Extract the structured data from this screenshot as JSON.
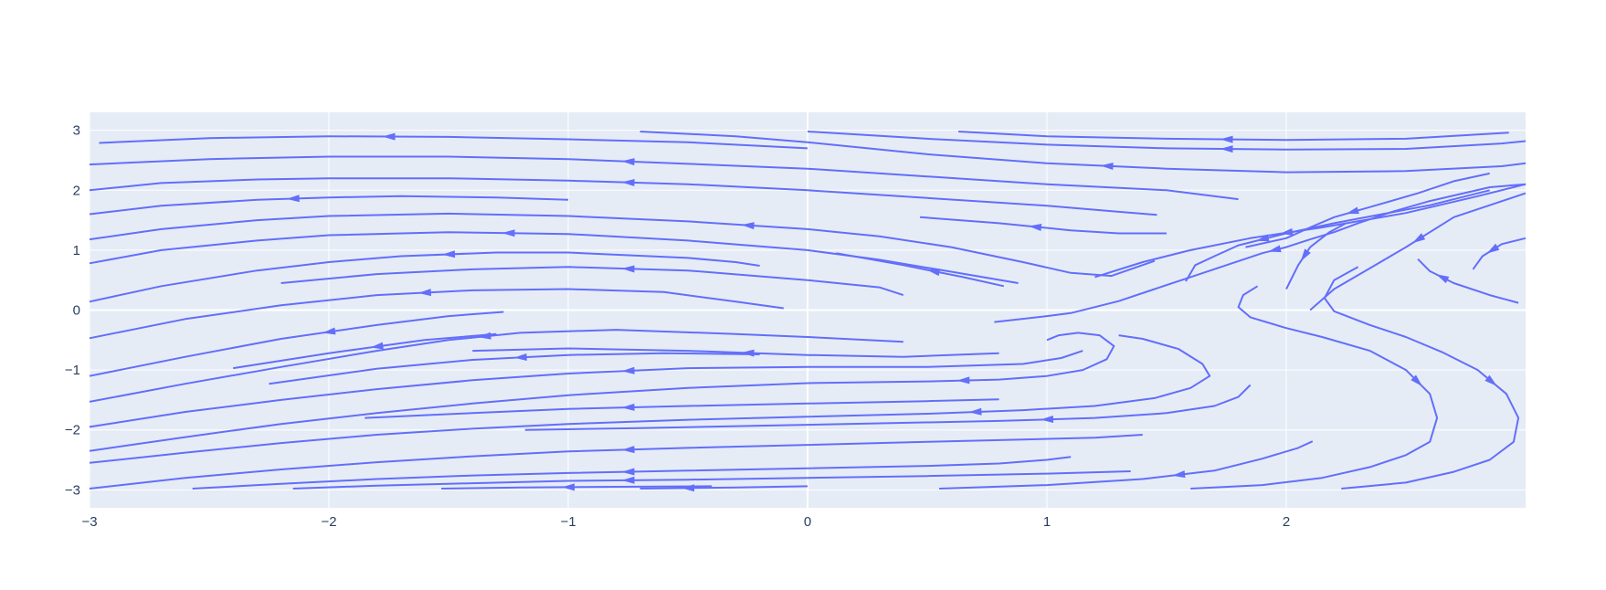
{
  "chart_data": {
    "type": "streamline",
    "title": "",
    "xlabel": "",
    "ylabel": "",
    "xlim": [
      -3,
      3
    ],
    "ylim": [
      -3.3,
      3.3
    ],
    "x_ticks": [
      -3,
      -2,
      -1,
      0,
      1,
      2
    ],
    "x_tick_labels": [
      "−3",
      "−2",
      "−1",
      "0",
      "1",
      "2"
    ],
    "y_ticks": [
      3,
      2,
      1,
      0,
      -1,
      -2,
      -3
    ],
    "y_tick_labels": [
      "3",
      "2",
      "1",
      "0",
      "−1",
      "−2",
      "−3"
    ],
    "grid": true,
    "colors": {
      "line": "#636efa",
      "plot_bg": "#e5ecf6",
      "grid": "#ffffff",
      "text": "#2a3f5f"
    },
    "streamlines": [
      [
        [
          -2.96,
          2.79
        ],
        [
          -2.5,
          2.87
        ],
        [
          -2,
          2.9
        ],
        [
          -1.5,
          2.89
        ],
        [
          -1,
          2.85
        ],
        [
          -0.5,
          2.8
        ],
        [
          0,
          2.7
        ]
      ],
      [
        [
          -3,
          2.43
        ],
        [
          -2.5,
          2.52
        ],
        [
          -2,
          2.56
        ],
        [
          -1.5,
          2.56
        ],
        [
          -1,
          2.52
        ],
        [
          -0.5,
          2.44
        ],
        [
          0,
          2.36
        ],
        [
          0.5,
          2.23
        ],
        [
          1,
          2.1
        ],
        [
          1.5,
          2.0
        ],
        [
          1.8,
          1.85
        ]
      ],
      [
        [
          -3,
          2.0
        ],
        [
          -2.7,
          2.12
        ],
        [
          -2.3,
          2.18
        ],
        [
          -2,
          2.2
        ],
        [
          -1.5,
          2.2
        ],
        [
          -1,
          2.16
        ],
        [
          -0.5,
          2.1
        ],
        [
          0,
          2.0
        ],
        [
          0.5,
          1.87
        ],
        [
          1,
          1.74
        ],
        [
          1.3,
          1.64
        ],
        [
          1.46,
          1.59
        ]
      ],
      [
        [
          -3,
          1.6
        ],
        [
          -2.7,
          1.74
        ],
        [
          -2.3,
          1.84
        ],
        [
          -2,
          1.88
        ],
        [
          -1.7,
          1.9
        ],
        [
          -1.3,
          1.88
        ],
        [
          -1.0,
          1.84
        ]
      ],
      [
        [
          -3,
          1.18
        ],
        [
          -2.7,
          1.35
        ],
        [
          -2.3,
          1.5
        ],
        [
          -2,
          1.57
        ],
        [
          -1.5,
          1.61
        ],
        [
          -1,
          1.57
        ],
        [
          -0.5,
          1.48
        ],
        [
          0,
          1.35
        ],
        [
          0.3,
          1.23
        ],
        [
          0.6,
          1.05
        ],
        [
          0.9,
          0.8
        ],
        [
          1.1,
          0.62
        ],
        [
          1.27,
          0.57
        ],
        [
          1.45,
          0.82
        ]
      ],
      [
        [
          -3,
          0.78
        ],
        [
          -2.7,
          1.0
        ],
        [
          -2.3,
          1.16
        ],
        [
          -2,
          1.25
        ],
        [
          -1.5,
          1.3
        ],
        [
          -1,
          1.27
        ],
        [
          -0.5,
          1.16
        ],
        [
          0,
          1.0
        ],
        [
          0.3,
          0.84
        ],
        [
          0.6,
          0.64
        ],
        [
          0.88,
          0.45
        ]
      ],
      [
        [
          -3,
          0.14
        ],
        [
          -2.7,
          0.4
        ],
        [
          -2.3,
          0.66
        ],
        [
          -2,
          0.8
        ],
        [
          -1.7,
          0.9
        ],
        [
          -1.3,
          0.96
        ],
        [
          -1,
          0.96
        ],
        [
          -0.5,
          0.87
        ],
        [
          -0.3,
          0.8
        ],
        [
          -0.2,
          0.74
        ]
      ],
      [
        [
          -2.2,
          0.45
        ],
        [
          -1.8,
          0.6
        ],
        [
          -1.4,
          0.68
        ],
        [
          -1.0,
          0.72
        ],
        [
          -0.5,
          0.66
        ],
        [
          0,
          0.5
        ],
        [
          0.3,
          0.38
        ],
        [
          0.4,
          0.25
        ]
      ],
      [
        [
          -3,
          -0.47
        ],
        [
          -2.6,
          -0.15
        ],
        [
          -2.2,
          0.08
        ],
        [
          -1.8,
          0.25
        ],
        [
          -1.4,
          0.33
        ],
        [
          -1,
          0.35
        ],
        [
          -0.6,
          0.3
        ],
        [
          -0.3,
          0.14
        ],
        [
          -0.1,
          0.03
        ]
      ],
      [
        [
          -3,
          -1.1
        ],
        [
          -2.6,
          -0.78
        ],
        [
          -2.2,
          -0.48
        ],
        [
          -1.8,
          -0.25
        ],
        [
          -1.5,
          -0.1
        ],
        [
          -1.27,
          -0.03
        ]
      ],
      [
        [
          -2.4,
          -0.97
        ],
        [
          -2,
          -0.72
        ],
        [
          -1.6,
          -0.5
        ],
        [
          -1.3,
          -0.4
        ]
      ],
      [
        [
          -3,
          -1.53
        ],
        [
          -2.6,
          -1.23
        ],
        [
          -2.2,
          -0.95
        ],
        [
          -1.8,
          -0.68
        ],
        [
          -1.5,
          -0.5
        ],
        [
          -1.2,
          -0.38
        ],
        [
          -0.8,
          -0.33
        ],
        [
          -0.3,
          -0.4
        ],
        [
          0,
          -0.45
        ],
        [
          0.4,
          -0.53
        ]
      ],
      [
        [
          -2.25,
          -1.23
        ],
        [
          -1.8,
          -0.98
        ],
        [
          -1.4,
          -0.83
        ],
        [
          -1.0,
          -0.75
        ],
        [
          -0.6,
          -0.72
        ],
        [
          -0.2,
          -0.74
        ]
      ],
      [
        [
          -1.4,
          -0.68
        ],
        [
          -1,
          -0.64
        ],
        [
          -0.5,
          -0.68
        ],
        [
          0,
          -0.75
        ],
        [
          0.4,
          -0.78
        ],
        [
          0.8,
          -0.72
        ]
      ],
      [
        [
          -3,
          -1.95
        ],
        [
          -2.6,
          -1.7
        ],
        [
          -2.2,
          -1.5
        ],
        [
          -1.8,
          -1.32
        ],
        [
          -1.4,
          -1.17
        ],
        [
          -1,
          -1.06
        ],
        [
          -0.5,
          -0.97
        ],
        [
          0,
          -0.95
        ],
        [
          0.5,
          -0.95
        ],
        [
          0.9,
          -0.9
        ],
        [
          1.06,
          -0.8
        ],
        [
          1.15,
          -0.68
        ]
      ],
      [
        [
          -3,
          -2.35
        ],
        [
          -2.6,
          -2.12
        ],
        [
          -2.2,
          -1.9
        ],
        [
          -1.8,
          -1.72
        ],
        [
          -1.4,
          -1.56
        ],
        [
          -1,
          -1.42
        ],
        [
          -0.5,
          -1.3
        ],
        [
          0,
          -1.22
        ],
        [
          0.5,
          -1.19
        ],
        [
          0.8,
          -1.16
        ],
        [
          1.0,
          -1.1
        ],
        [
          1.15,
          -1.0
        ],
        [
          1.25,
          -0.82
        ],
        [
          1.28,
          -0.6
        ],
        [
          1.22,
          -0.42
        ],
        [
          1.13,
          -0.38
        ],
        [
          1.05,
          -0.42
        ],
        [
          1.0,
          -0.5
        ]
      ],
      [
        [
          -1.85,
          -1.8
        ],
        [
          -1.4,
          -1.72
        ],
        [
          -1,
          -1.65
        ],
        [
          -0.5,
          -1.6
        ],
        [
          0,
          -1.56
        ],
        [
          0.5,
          -1.52
        ],
        [
          0.8,
          -1.49
        ]
      ],
      [
        [
          -3,
          -2.55
        ],
        [
          -2.6,
          -2.38
        ],
        [
          -2.2,
          -2.22
        ],
        [
          -1.8,
          -2.08
        ],
        [
          -1.4,
          -1.98
        ],
        [
          -1,
          -1.9
        ],
        [
          -0.5,
          -1.83
        ],
        [
          0,
          -1.78
        ],
        [
          0.5,
          -1.73
        ],
        [
          0.9,
          -1.67
        ],
        [
          1.2,
          -1.6
        ],
        [
          1.45,
          -1.47
        ],
        [
          1.6,
          -1.3
        ],
        [
          1.68,
          -1.1
        ],
        [
          1.65,
          -0.9
        ],
        [
          1.55,
          -0.65
        ],
        [
          1.4,
          -0.48
        ],
        [
          1.3,
          -0.42
        ]
      ],
      [
        [
          -1.18,
          -2.0
        ],
        [
          -0.7,
          -1.97
        ],
        [
          -0.2,
          -1.93
        ],
        [
          0.3,
          -1.89
        ],
        [
          0.8,
          -1.85
        ],
        [
          1.2,
          -1.8
        ],
        [
          1.5,
          -1.72
        ],
        [
          1.7,
          -1.6
        ],
        [
          1.8,
          -1.45
        ],
        [
          1.85,
          -1.25
        ]
      ],
      [
        [
          -3,
          -2.98
        ],
        [
          -2.6,
          -2.8
        ],
        [
          -2.2,
          -2.66
        ],
        [
          -1.8,
          -2.54
        ],
        [
          -1.4,
          -2.44
        ],
        [
          -1,
          -2.36
        ],
        [
          -0.5,
          -2.3
        ],
        [
          0,
          -2.25
        ],
        [
          0.5,
          -2.2
        ],
        [
          0.9,
          -2.16
        ],
        [
          1.2,
          -2.13
        ],
        [
          1.4,
          -2.08
        ]
      ],
      [
        [
          -2.57,
          -2.98
        ],
        [
          -2.2,
          -2.9
        ],
        [
          -1.8,
          -2.82
        ],
        [
          -1.4,
          -2.76
        ],
        [
          -1,
          -2.72
        ],
        [
          -0.5,
          -2.68
        ],
        [
          0,
          -2.64
        ],
        [
          0.5,
          -2.6
        ],
        [
          0.8,
          -2.56
        ],
        [
          1.0,
          -2.5
        ],
        [
          1.1,
          -2.45
        ]
      ],
      [
        [
          -2.15,
          -2.98
        ],
        [
          -1.8,
          -2.93
        ],
        [
          -1.4,
          -2.89
        ],
        [
          -1,
          -2.85
        ],
        [
          -0.5,
          -2.83
        ],
        [
          0,
          -2.8
        ],
        [
          0.5,
          -2.77
        ],
        [
          1.0,
          -2.73
        ],
        [
          1.35,
          -2.69
        ]
      ],
      [
        [
          -1.53,
          -2.98
        ],
        [
          -1.2,
          -2.96
        ],
        [
          -0.8,
          -2.95
        ],
        [
          -0.4,
          -2.94
        ]
      ],
      [
        [
          -0.7,
          -2.98
        ],
        [
          -0.3,
          -2.96
        ],
        [
          0,
          -2.94
        ]
      ],
      [
        [
          0.55,
          -2.98
        ],
        [
          1.0,
          -2.92
        ],
        [
          1.4,
          -2.82
        ],
        [
          1.7,
          -2.68
        ],
        [
          1.9,
          -2.48
        ],
        [
          2.05,
          -2.3
        ],
        [
          2.11,
          -2.19
        ]
      ],
      [
        [
          1.6,
          -2.98
        ],
        [
          1.9,
          -2.92
        ],
        [
          2.15,
          -2.8
        ],
        [
          2.35,
          -2.62
        ],
        [
          2.5,
          -2.42
        ],
        [
          2.6,
          -2.2
        ],
        [
          2.63,
          -1.8
        ],
        [
          2.6,
          -1.4
        ],
        [
          2.5,
          -1.0
        ],
        [
          2.35,
          -0.68
        ],
        [
          2.15,
          -0.45
        ],
        [
          2.0,
          -0.3
        ],
        [
          1.85,
          -0.12
        ],
        [
          1.8,
          0.05
        ],
        [
          1.82,
          0.25
        ],
        [
          1.88,
          0.4
        ]
      ],
      [
        [
          2.23,
          -2.98
        ],
        [
          2.5,
          -2.88
        ],
        [
          2.7,
          -2.7
        ],
        [
          2.85,
          -2.5
        ],
        [
          2.95,
          -2.2
        ],
        [
          2.97,
          -1.8
        ],
        [
          2.92,
          -1.4
        ],
        [
          2.8,
          -1.0
        ],
        [
          2.65,
          -0.7
        ],
        [
          2.5,
          -0.45
        ],
        [
          2.35,
          -0.25
        ],
        [
          2.2,
          -0.02
        ],
        [
          2.16,
          0.2
        ],
        [
          2.2,
          0.5
        ],
        [
          2.3,
          0.72
        ]
      ],
      [
        [
          2.55,
          0.85
        ],
        [
          2.6,
          0.65
        ],
        [
          2.7,
          0.45
        ],
        [
          2.85,
          0.25
        ],
        [
          2.97,
          0.12
        ]
      ],
      [
        [
          2.78,
          0.68
        ],
        [
          2.82,
          0.9
        ],
        [
          2.9,
          1.1
        ],
        [
          3.0,
          1.2
        ]
      ],
      [
        [
          0.78,
          -0.2
        ],
        [
          1.0,
          -0.1
        ],
        [
          1.1,
          -0.05
        ],
        [
          1.3,
          0.15
        ],
        [
          1.45,
          0.35
        ],
        [
          1.6,
          0.55
        ],
        [
          1.75,
          0.75
        ],
        [
          1.9,
          0.95
        ],
        [
          2.0,
          1.05
        ],
        [
          2.1,
          1.18
        ],
        [
          2.2,
          1.3
        ],
        [
          2.3,
          1.45
        ],
        [
          2.45,
          1.65
        ],
        [
          2.6,
          1.82
        ],
        [
          2.85,
          2.05
        ],
        [
          3,
          2.1
        ]
      ],
      [
        [
          2.1,
          0.0
        ],
        [
          2.2,
          0.35
        ],
        [
          2.35,
          0.7
        ],
        [
          2.5,
          1.05
        ],
        [
          2.6,
          1.3
        ],
        [
          2.7,
          1.55
        ],
        [
          2.85,
          1.75
        ],
        [
          3,
          1.95
        ]
      ],
      [
        [
          1.58,
          0.48
        ],
        [
          1.62,
          0.75
        ],
        [
          1.7,
          0.9
        ],
        [
          1.8,
          1.08
        ],
        [
          2.0,
          1.28
        ],
        [
          2.2,
          1.45
        ],
        [
          2.4,
          1.6
        ],
        [
          2.6,
          1.75
        ],
        [
          2.85,
          2.0
        ]
      ],
      [
        [
          -0.7,
          2.98
        ],
        [
          -0.3,
          2.9
        ],
        [
          0,
          2.8
        ],
        [
          0.5,
          2.6
        ],
        [
          1,
          2.45
        ],
        [
          1.5,
          2.36
        ],
        [
          2,
          2.3
        ],
        [
          2.5,
          2.32
        ],
        [
          2.9,
          2.4
        ],
        [
          3,
          2.45
        ]
      ],
      [
        [
          0,
          2.98
        ],
        [
          0.5,
          2.86
        ],
        [
          1,
          2.76
        ],
        [
          1.5,
          2.7
        ],
        [
          2,
          2.68
        ],
        [
          2.5,
          2.69
        ],
        [
          2.9,
          2.78
        ],
        [
          3,
          2.82
        ]
      ],
      [
        [
          0.63,
          2.98
        ],
        [
          1.0,
          2.9
        ],
        [
          1.5,
          2.86
        ],
        [
          2,
          2.84
        ],
        [
          2.5,
          2.86
        ],
        [
          2.93,
          2.96
        ]
      ],
      [
        [
          0.47,
          1.55
        ],
        [
          0.8,
          1.45
        ],
        [
          1.1,
          1.33
        ],
        [
          1.3,
          1.28
        ],
        [
          1.5,
          1.28
        ]
      ],
      [
        [
          0.12,
          0.95
        ],
        [
          0.4,
          0.75
        ],
        [
          0.65,
          0.55
        ],
        [
          0.82,
          0.4
        ]
      ],
      [
        [
          1.2,
          0.55
        ],
        [
          1.4,
          0.8
        ],
        [
          1.6,
          1.0
        ],
        [
          1.85,
          1.2
        ],
        [
          2.15,
          1.38
        ],
        [
          2.5,
          1.62
        ],
        [
          2.8,
          1.9
        ],
        [
          3,
          2.1
        ]
      ],
      [
        [
          1.83,
          1.05
        ],
        [
          2.0,
          1.2
        ],
        [
          2.1,
          1.38
        ],
        [
          2.2,
          1.55
        ],
        [
          2.35,
          1.72
        ],
        [
          2.55,
          1.95
        ],
        [
          2.7,
          2.15
        ],
        [
          2.85,
          2.28
        ]
      ],
      [
        [
          2.0,
          0.35
        ],
        [
          2.05,
          0.75
        ],
        [
          2.1,
          1.05
        ],
        [
          2.18,
          1.3
        ],
        [
          2.25,
          1.45
        ]
      ]
    ]
  }
}
